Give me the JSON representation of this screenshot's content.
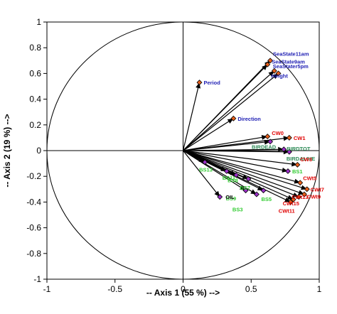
{
  "chart_data": {
    "type": "scatter",
    "xlabel": "-- Axis 1 (55 %) -->",
    "ylabel": "-- Axis 2 (19 %) -->",
    "xlim": [
      -1,
      1
    ],
    "ylim": [
      -1,
      1
    ],
    "x_ticks": [
      "-1",
      "-0.5",
      "0",
      "0.5",
      "1"
    ],
    "y_ticks": [
      "1",
      "0.8",
      "0.6",
      "0.4",
      "0.2",
      "0",
      "-0.2",
      "-0.4",
      "-0.6",
      "-0.8",
      "-1"
    ],
    "unit_circle": true,
    "colors": {
      "environmental": "#1f1fb4",
      "sea_state_marker": "#e8601c",
      "cw": "#e00000",
      "bird": "#2e8b57",
      "bs": "#33cc33",
      "oil": "#000000",
      "diamond_purple": "#9b30c8",
      "diamond_orange": "#e8601c"
    },
    "points": [
      {
        "label": "SeaState11am",
        "x": 0.64,
        "y": 0.7,
        "group": "environmental",
        "marker": "orange"
      },
      {
        "label": "SeaState9am",
        "x": 0.62,
        "y": 0.67,
        "group": "environmental",
        "marker": "orange"
      },
      {
        "label": "SeaStater5pm",
        "x": 0.67,
        "y": 0.62,
        "group": "environmental",
        "marker": "orange"
      },
      {
        "label": "Height",
        "x": 0.7,
        "y": 0.6,
        "group": "environmental",
        "marker": "orange"
      },
      {
        "label": "Period",
        "x": 0.12,
        "y": 0.53,
        "group": "environmental",
        "marker": "orange"
      },
      {
        "label": "Direction",
        "x": 0.37,
        "y": 0.25,
        "group": "environmental",
        "marker": "orange"
      },
      {
        "label": "CW0",
        "x": 0.62,
        "y": 0.11,
        "group": "cw",
        "marker": "orange"
      },
      {
        "label": "CW1",
        "x": 0.78,
        "y": 0.1,
        "group": "cw",
        "marker": "orange"
      },
      {
        "label": "BIRDEAD",
        "x": 0.64,
        "y": 0.07,
        "group": "bird",
        "marker": "purple"
      },
      {
        "label": "BIRDTOT",
        "x": 0.74,
        "y": 0.01,
        "group": "bird",
        "marker": "purple"
      },
      {
        "label": "BIRDALIVE",
        "x": 0.78,
        "y": -0.01,
        "group": "bird",
        "marker": "purple"
      },
      {
        "label": "CW3",
        "x": 0.84,
        "y": -0.11,
        "group": "cw",
        "marker": "orange"
      },
      {
        "label": "BS1",
        "x": 0.77,
        "y": -0.16,
        "group": "bs",
        "marker": "purple"
      },
      {
        "label": "BS13",
        "x": 0.16,
        "y": -0.09,
        "group": "bs",
        "marker": "purple"
      },
      {
        "label": "BS11",
        "x": 0.32,
        "y": -0.16,
        "group": "bs",
        "marker": "purple"
      },
      {
        "label": "BS8",
        "x": 0.39,
        "y": -0.19,
        "group": "bs",
        "marker": "purple"
      },
      {
        "label": "BS7",
        "x": 0.48,
        "y": -0.22,
        "group": "bs",
        "marker": "purple"
      },
      {
        "label": "BS9",
        "x": 0.46,
        "y": -0.31,
        "group": "bs",
        "marker": "purple"
      },
      {
        "label": "BS5",
        "x": 0.59,
        "y": -0.31,
        "group": "bs",
        "marker": "purple"
      },
      {
        "label": "BS3",
        "x": 0.54,
        "y": -0.34,
        "group": "bs",
        "marker": "purple"
      },
      {
        "label": "OIL",
        "x": 0.27,
        "y": -0.36,
        "group": "oil",
        "marker": "purple"
      },
      {
        "label": "CWt5",
        "x": 0.86,
        "y": -0.25,
        "group": "cw",
        "marker": "orange"
      },
      {
        "label": "CWt7",
        "x": 0.91,
        "y": -0.3,
        "group": "cw",
        "marker": "orange"
      },
      {
        "label": "CWt9",
        "x": 0.89,
        "y": -0.34,
        "group": "cw",
        "marker": "orange"
      },
      {
        "label": "CWt13",
        "x": 0.85,
        "y": -0.36,
        "group": "cw",
        "marker": "orange"
      },
      {
        "label": "CWt15",
        "x": 0.81,
        "y": -0.38,
        "group": "cw",
        "marker": "orange"
      },
      {
        "label": "CWt11",
        "x": 0.79,
        "y": -0.4,
        "group": "cw",
        "marker": "orange"
      }
    ]
  }
}
